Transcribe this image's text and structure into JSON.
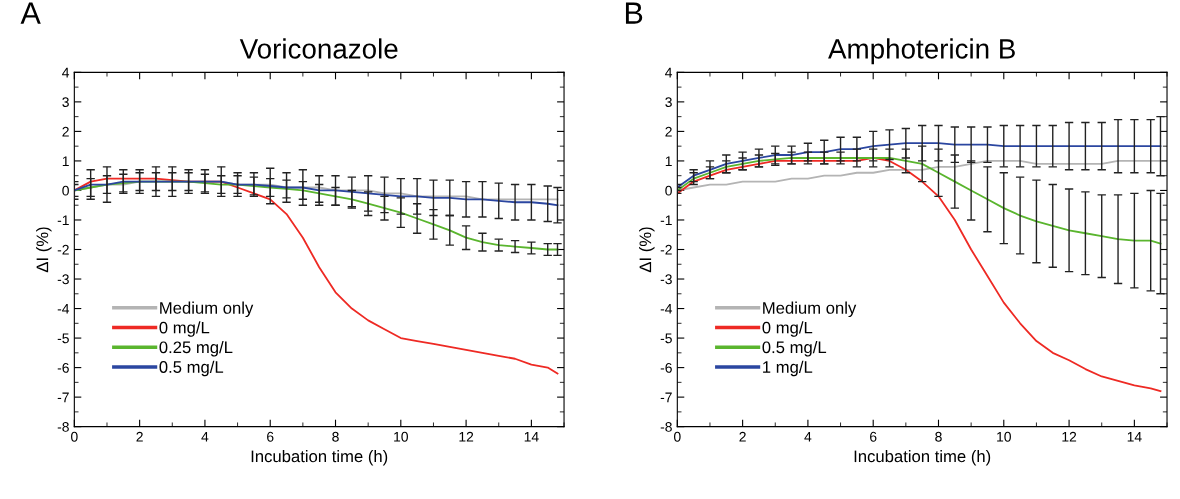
{
  "chart_data": [
    {
      "type": "line",
      "title": "Voriconazole",
      "xlabel": "Incubation time (h)",
      "ylabel": "ΔI (%)",
      "annotations": [
        "A"
      ],
      "xlim": [
        0,
        15
      ],
      "ylim": [
        -8,
        4
      ],
      "xticks": [
        0,
        2,
        4,
        6,
        8,
        10,
        12,
        14
      ],
      "yticks": [
        -8,
        -7,
        -6,
        -5,
        -4,
        -3,
        -2,
        -1,
        0,
        1,
        2,
        3,
        4
      ],
      "grid": false,
      "legend": "bottom left",
      "marker": "none",
      "line_style": "solid",
      "x": [
        0,
        0.5,
        1,
        1.5,
        2,
        2.5,
        3,
        3.5,
        4,
        4.5,
        5,
        5.5,
        6,
        6.5,
        7,
        7.5,
        8,
        8.5,
        9,
        9.5,
        10,
        10.5,
        11,
        11.5,
        12,
        12.5,
        13,
        13.5,
        14,
        14.5,
        14.8
      ],
      "series": [
        {
          "name": "Medium only",
          "color": "#b4b4b4",
          "values": [
            0,
            0.1,
            0.2,
            0.2,
            0.3,
            0.3,
            0.3,
            0.3,
            0.3,
            0.3,
            0.2,
            0.2,
            0.2,
            0.1,
            0.1,
            0.1,
            0.0,
            0.0,
            0.0,
            -0.1,
            -0.1,
            -0.2,
            -0.2,
            -0.2,
            -0.2,
            -0.3,
            -0.3,
            -0.3,
            -0.3,
            -0.3,
            -0.3
          ]
        },
        {
          "name": "0 mg/L",
          "color": "#ee2a24",
          "values": [
            0,
            0.3,
            0.4,
            0.4,
            0.4,
            0.4,
            0.35,
            0.3,
            0.3,
            0.3,
            0.1,
            -0.1,
            -0.3,
            -0.8,
            -1.6,
            -2.6,
            -3.45,
            -4.0,
            -4.4,
            -4.7,
            -5.0,
            -5.1,
            -5.2,
            -5.3,
            -5.4,
            -5.5,
            -5.6,
            -5.7,
            -5.9,
            -6.0,
            -6.2
          ]
        },
        {
          "name": "0.25 mg/L",
          "color": "#5ab52e",
          "values": [
            0,
            0.1,
            0.2,
            0.25,
            0.3,
            0.3,
            0.3,
            0.3,
            0.25,
            0.2,
            0.2,
            0.15,
            0.1,
            0.05,
            0.0,
            -0.1,
            -0.2,
            -0.3,
            -0.45,
            -0.6,
            -0.75,
            -0.95,
            -1.15,
            -1.35,
            -1.6,
            -1.75,
            -1.85,
            -1.9,
            -1.95,
            -2.0,
            -2.0
          ],
          "errors": [
            0.2,
            0.3,
            0.3,
            0.3,
            0.3,
            0.3,
            0.3,
            0.3,
            0.3,
            0.3,
            0.3,
            0.3,
            0.3,
            0.3,
            0.3,
            0.3,
            0.3,
            0.3,
            0.4,
            0.4,
            0.5,
            0.5,
            0.5,
            0.5,
            0.4,
            0.3,
            0.2,
            0.2,
            0.2,
            0.2,
            0.2
          ]
        },
        {
          "name": "0.5 mg/L",
          "color": "#2b46a0",
          "values": [
            0,
            0.2,
            0.2,
            0.3,
            0.3,
            0.3,
            0.3,
            0.3,
            0.3,
            0.3,
            0.2,
            0.2,
            0.15,
            0.1,
            0.1,
            0.0,
            0.0,
            -0.05,
            -0.1,
            -0.15,
            -0.2,
            -0.2,
            -0.25,
            -0.25,
            -0.3,
            -0.3,
            -0.35,
            -0.4,
            -0.4,
            -0.45,
            -0.5
          ],
          "errors": [
            0.3,
            0.5,
            0.6,
            0.4,
            0.4,
            0.5,
            0.5,
            0.4,
            0.4,
            0.5,
            0.4,
            0.4,
            0.6,
            0.5,
            0.6,
            0.5,
            0.5,
            0.5,
            0.6,
            0.6,
            0.6,
            0.6,
            0.6,
            0.6,
            0.6,
            0.6,
            0.6,
            0.6,
            0.6,
            0.6,
            0.6
          ]
        }
      ]
    },
    {
      "type": "line",
      "title": "Amphotericin B",
      "xlabel": "Incubation time (h)",
      "ylabel": "ΔI (%)",
      "annotations": [
        "B"
      ],
      "xlim": [
        0,
        15
      ],
      "ylim": [
        -8,
        4
      ],
      "xticks": [
        0,
        2,
        4,
        6,
        8,
        10,
        12,
        14
      ],
      "yticks": [
        -8,
        -7,
        -6,
        -5,
        -4,
        -3,
        -2,
        -1,
        0,
        1,
        2,
        3,
        4
      ],
      "grid": false,
      "legend": "bottom left",
      "marker": "none",
      "line_style": "solid",
      "x": [
        0,
        0.5,
        1,
        1.5,
        2,
        2.5,
        3,
        3.5,
        4,
        4.5,
        5,
        5.5,
        6,
        6.5,
        7,
        7.5,
        8,
        8.5,
        9,
        9.5,
        10,
        10.5,
        11,
        11.5,
        12,
        12.5,
        13,
        13.5,
        14,
        14.5,
        14.8
      ],
      "series": [
        {
          "name": "Medium only",
          "color": "#b4b4b4",
          "values": [
            0,
            0.1,
            0.2,
            0.2,
            0.3,
            0.3,
            0.3,
            0.4,
            0.4,
            0.5,
            0.5,
            0.6,
            0.6,
            0.7,
            0.7,
            0.7,
            0.8,
            0.8,
            0.9,
            1.0,
            1.0,
            1.0,
            0.9,
            0.9,
            0.9,
            0.9,
            0.9,
            1.0,
            1.0,
            1.0,
            1.0
          ]
        },
        {
          "name": "0 mg/L",
          "color": "#ee2a24",
          "values": [
            -0.1,
            0.3,
            0.5,
            0.7,
            0.8,
            0.9,
            1.0,
            1.0,
            1.0,
            1.0,
            1.0,
            1.0,
            1.1,
            1.0,
            0.7,
            0.3,
            -0.2,
            -1.0,
            -2.0,
            -2.9,
            -3.8,
            -4.5,
            -5.1,
            -5.5,
            -5.75,
            -6.05,
            -6.3,
            -6.45,
            -6.6,
            -6.7,
            -6.8
          ]
        },
        {
          "name": "0.5 mg/L",
          "color": "#5ab52e",
          "values": [
            0,
            0.4,
            0.6,
            0.8,
            0.9,
            1.0,
            1.05,
            1.1,
            1.1,
            1.1,
            1.1,
            1.1,
            1.1,
            1.1,
            1.0,
            0.9,
            0.6,
            0.3,
            0.0,
            -0.3,
            -0.6,
            -0.85,
            -1.05,
            -1.2,
            -1.35,
            -1.45,
            -1.55,
            -1.65,
            -1.7,
            -1.7,
            -1.8
          ],
          "errors": [
            0.1,
            0.2,
            0.2,
            0.2,
            0.2,
            0.2,
            0.2,
            0.2,
            0.2,
            0.2,
            0.2,
            0.3,
            0.3,
            0.3,
            0.4,
            0.6,
            0.8,
            0.9,
            1.0,
            1.1,
            1.2,
            1.3,
            1.4,
            1.4,
            1.4,
            1.4,
            1.4,
            1.5,
            1.6,
            1.7,
            1.7
          ]
        },
        {
          "name": "1 mg/L",
          "color": "#2b46a0",
          "values": [
            0.1,
            0.5,
            0.7,
            0.9,
            1.0,
            1.1,
            1.2,
            1.2,
            1.3,
            1.3,
            1.4,
            1.4,
            1.5,
            1.55,
            1.6,
            1.6,
            1.6,
            1.55,
            1.55,
            1.55,
            1.5,
            1.5,
            1.5,
            1.5,
            1.5,
            1.5,
            1.5,
            1.5,
            1.5,
            1.5,
            1.5
          ],
          "errors": [
            0.1,
            0.2,
            0.3,
            0.3,
            0.3,
            0.3,
            0.3,
            0.3,
            0.3,
            0.4,
            0.4,
            0.4,
            0.5,
            0.5,
            0.5,
            0.6,
            0.6,
            0.6,
            0.6,
            0.6,
            0.7,
            0.7,
            0.7,
            0.7,
            0.8,
            0.8,
            0.8,
            0.9,
            0.9,
            0.9,
            1.0
          ]
        }
      ]
    }
  ]
}
